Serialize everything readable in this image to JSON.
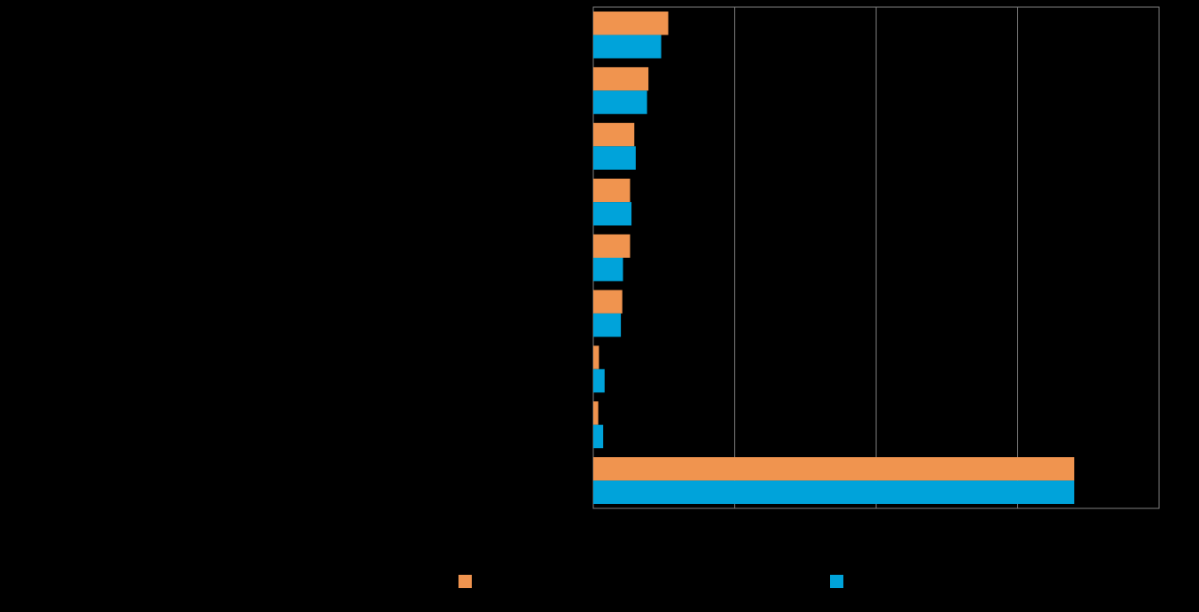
{
  "chart_data": {
    "type": "bar",
    "orientation": "horizontal",
    "title": "",
    "xlabel": "",
    "ylabel": "",
    "categories": [
      "",
      "",
      "",
      "",
      "",
      "",
      "",
      "",
      ""
    ],
    "series": [
      {
        "color": "#F0944F",
        "values": [
          5.3,
          3.9,
          2.9,
          2.6,
          2.6,
          2.05,
          0.4,
          0.35,
          34.0
        ]
      },
      {
        "color": "#00A3DA",
        "values": [
          4.8,
          3.8,
          3.0,
          2.7,
          2.1,
          1.95,
          0.8,
          0.7,
          34.0
        ]
      }
    ],
    "xlim": [
      0,
      40
    ],
    "xticks": [
      0,
      10,
      20,
      30,
      40
    ],
    "grid": true,
    "legend_position": "bottom",
    "colors": {
      "background": "#000000",
      "grid": "#7F7F7F"
    }
  }
}
